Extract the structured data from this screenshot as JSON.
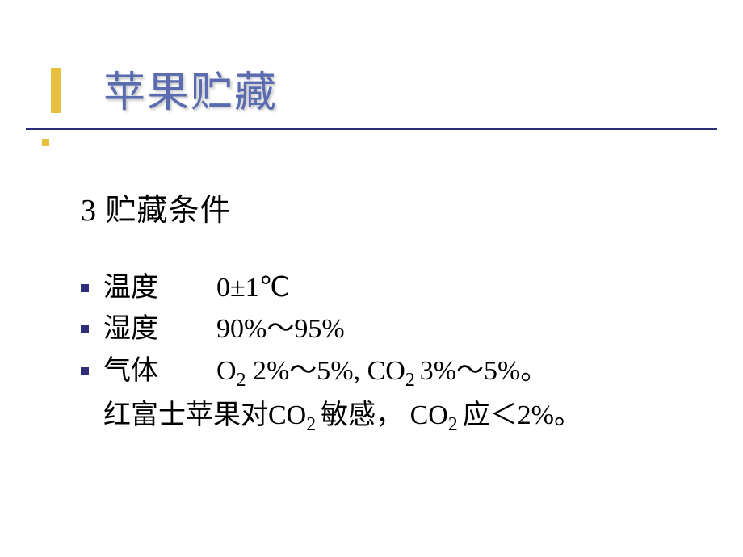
{
  "slide": {
    "title": "苹果贮藏",
    "section_heading": "3 贮藏条件",
    "items": [
      {
        "label": "温度",
        "value": "0±1℃"
      },
      {
        "label": "湿度",
        "value": "90%～95%"
      },
      {
        "label": "气体",
        "value_html": "O<sub>2</sub>  2%～5%,  CO<sub>2 </sub>3%～5%。"
      }
    ],
    "note_html": "红富士苹果对CO<sub>2 </sub>敏感， CO<sub>2 </sub>应＜2%。"
  },
  "styling": {
    "background_color": "#ffffff",
    "title_color": "#5a6bb0",
    "title_fontsize": 52,
    "accent_color": "#e8c040",
    "divider_color": "#2d2d7a",
    "bullet_color": "#2d2d7a",
    "body_text_color": "#000000",
    "body_fontsize": 34,
    "heading_fontsize": 38,
    "font_family": "SimSun"
  }
}
